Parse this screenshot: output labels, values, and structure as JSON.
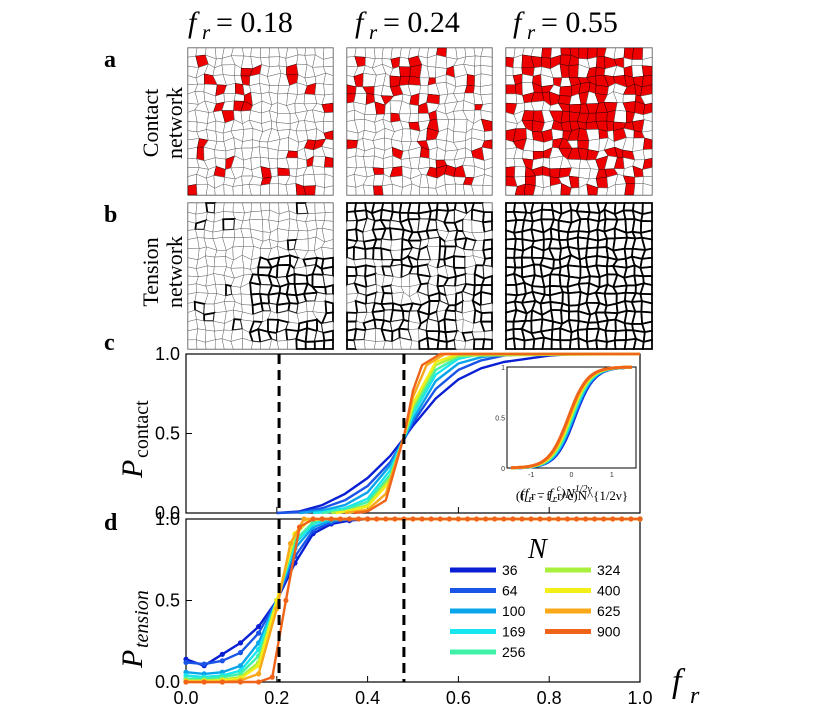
{
  "headers": {
    "col1": {
      "main": "f",
      "sub": "r",
      "value": "= 0.18"
    },
    "col2": {
      "main": "f",
      "sub": "r",
      "value": "= 0.24"
    },
    "col3": {
      "main": "f",
      "sub": "r",
      "value": "= 0.55"
    }
  },
  "rows": {
    "a": {
      "letter": "a",
      "line1": "Contact",
      "line2": "network"
    },
    "b": {
      "letter": "b",
      "line1": "Tension",
      "line2": "network"
    }
  },
  "colors": {
    "rigid": "#ee0000",
    "cell_edge": "#666666",
    "tension_edge": "#000000"
  },
  "chart_data": [
    {
      "id": "c",
      "type": "line",
      "panel_label": "c",
      "ylabel": "P",
      "ylabel_sub": "contact",
      "xlim": [
        0,
        1
      ],
      "ylim": [
        0,
        1
      ],
      "yticks": [
        "0.0",
        "0.5",
        "1.0"
      ],
      "vlines": [
        0.205,
        0.48
      ],
      "series": [
        {
          "name": "36",
          "color": "#0a1fd4",
          "x": [
            0.2,
            0.25,
            0.3,
            0.35,
            0.4,
            0.45,
            0.48,
            0.5,
            0.55,
            0.6,
            0.65,
            0.7,
            0.75,
            0.8,
            0.85,
            0.9,
            1.0
          ],
          "y": [
            0,
            0.01,
            0.05,
            0.12,
            0.22,
            0.36,
            0.47,
            0.55,
            0.72,
            0.84,
            0.91,
            0.95,
            0.97,
            0.99,
            1,
            1,
            1
          ]
        },
        {
          "name": "64",
          "color": "#1a55e8",
          "x": [
            0.2,
            0.25,
            0.3,
            0.35,
            0.4,
            0.45,
            0.48,
            0.5,
            0.55,
            0.6,
            0.65,
            0.7,
            0.75,
            0.8,
            1.0
          ],
          "y": [
            0,
            0.005,
            0.03,
            0.08,
            0.17,
            0.32,
            0.46,
            0.57,
            0.78,
            0.9,
            0.96,
            0.99,
            1,
            1,
            1
          ]
        },
        {
          "name": "100",
          "color": "#0aa4ea",
          "x": [
            0.25,
            0.3,
            0.35,
            0.4,
            0.45,
            0.48,
            0.5,
            0.55,
            0.6,
            0.65,
            0.7,
            1.0
          ],
          "y": [
            0,
            0.015,
            0.05,
            0.13,
            0.3,
            0.47,
            0.59,
            0.83,
            0.94,
            0.98,
            1,
            1
          ]
        },
        {
          "name": "169",
          "color": "#18e6ee",
          "x": [
            0.28,
            0.3,
            0.35,
            0.4,
            0.45,
            0.48,
            0.5,
            0.55,
            0.6,
            0.65,
            1.0
          ],
          "y": [
            0,
            0.005,
            0.03,
            0.09,
            0.27,
            0.47,
            0.62,
            0.87,
            0.97,
            1,
            1
          ]
        },
        {
          "name": "256",
          "color": "#3ef0a8",
          "x": [
            0.3,
            0.35,
            0.4,
            0.45,
            0.48,
            0.5,
            0.55,
            0.6,
            0.65,
            1.0
          ],
          "y": [
            0,
            0.02,
            0.07,
            0.24,
            0.47,
            0.64,
            0.9,
            0.98,
            1,
            1
          ]
        },
        {
          "name": "324",
          "color": "#a8f03c",
          "x": [
            0.32,
            0.35,
            0.4,
            0.45,
            0.48,
            0.5,
            0.55,
            0.6,
            1.0
          ],
          "y": [
            0,
            0.01,
            0.05,
            0.22,
            0.48,
            0.67,
            0.93,
            0.99,
            1
          ]
        },
        {
          "name": "400",
          "color": "#f4ee18",
          "x": [
            0.33,
            0.35,
            0.4,
            0.45,
            0.48,
            0.5,
            0.55,
            0.6,
            1.0
          ],
          "y": [
            0,
            0.008,
            0.04,
            0.2,
            0.48,
            0.69,
            0.95,
            1,
            1
          ]
        },
        {
          "name": "625",
          "color": "#f8a818",
          "x": [
            0.35,
            0.4,
            0.44,
            0.48,
            0.5,
            0.53,
            0.57,
            1.0
          ],
          "y": [
            0,
            0.02,
            0.12,
            0.48,
            0.73,
            0.93,
            1,
            1
          ]
        },
        {
          "name": "900",
          "color": "#f0641a",
          "x": [
            0.37,
            0.4,
            0.44,
            0.48,
            0.5,
            0.52,
            0.56,
            1.0
          ],
          "y": [
            0,
            0.01,
            0.08,
            0.48,
            0.77,
            0.93,
            1,
            1
          ]
        }
      ]
    },
    {
      "id": "c-inset",
      "type": "scatter",
      "xlabel": "(f_r - f_r^c)N^{1/2ν}",
      "xlim": [
        -1.6,
        1.6
      ],
      "ylim": [
        0,
        1
      ],
      "xticks": [
        "-1",
        "0",
        "1"
      ],
      "yticks": [
        "0",
        "0.5",
        "1"
      ],
      "note": "all system sizes collapse onto one sigmoidal curve"
    },
    {
      "id": "d",
      "type": "line",
      "panel_label": "d",
      "ylabel": "P",
      "ylabel_sub": "tension",
      "xlabel": "f",
      "xlabel_sub": "r",
      "xlim": [
        0,
        1
      ],
      "ylim": [
        0,
        1
      ],
      "xticks": [
        "0.0",
        "0.2",
        "0.4",
        "0.6",
        "0.8",
        "1.0"
      ],
      "yticks": [
        "0.0",
        "0.5",
        "1.0"
      ],
      "vlines": [
        0.205,
        0.48
      ],
      "legend_title": "N",
      "series": [
        {
          "name": "36",
          "color": "#0a1fd4",
          "x": [
            0,
            0.04,
            0.08,
            0.12,
            0.16,
            0.2,
            0.24,
            0.28,
            0.32,
            0.36,
            0.4,
            1.0
          ],
          "y": [
            0.14,
            0.1,
            0.17,
            0.24,
            0.34,
            0.5,
            0.73,
            0.91,
            0.97,
            0.99,
            1,
            1
          ]
        },
        {
          "name": "64",
          "color": "#1a55e8",
          "x": [
            0,
            0.04,
            0.08,
            0.12,
            0.16,
            0.2,
            0.24,
            0.28,
            0.32,
            0.36,
            1.0
          ],
          "y": [
            0.12,
            0.11,
            0.13,
            0.18,
            0.3,
            0.5,
            0.77,
            0.93,
            0.98,
            1,
            1
          ]
        },
        {
          "name": "100",
          "color": "#0aa4ea",
          "x": [
            0,
            0.04,
            0.08,
            0.12,
            0.16,
            0.2,
            0.24,
            0.28,
            0.32,
            0.36,
            1.0
          ],
          "y": [
            0.06,
            0.05,
            0.06,
            0.1,
            0.24,
            0.5,
            0.82,
            0.95,
            0.99,
            1,
            1
          ]
        },
        {
          "name": "169",
          "color": "#18e6ee",
          "x": [
            0,
            0.04,
            0.08,
            0.12,
            0.16,
            0.2,
            0.24,
            0.28,
            0.32,
            1.0
          ],
          "y": [
            0.04,
            0.03,
            0.04,
            0.07,
            0.2,
            0.5,
            0.85,
            0.97,
            1,
            1
          ]
        },
        {
          "name": "256",
          "color": "#3ef0a8",
          "x": [
            0,
            0.04,
            0.08,
            0.12,
            0.16,
            0.2,
            0.24,
            0.28,
            0.3,
            1.0
          ],
          "y": [
            0.02,
            0.02,
            0.03,
            0.05,
            0.16,
            0.5,
            0.87,
            0.98,
            1,
            1
          ]
        },
        {
          "name": "324",
          "color": "#a8f03c",
          "x": [
            0,
            0.04,
            0.08,
            0.12,
            0.16,
            0.2,
            0.24,
            0.27,
            0.3,
            1.0
          ],
          "y": [
            0.01,
            0.01,
            0.015,
            0.03,
            0.12,
            0.5,
            0.9,
            0.99,
            1,
            1
          ]
        },
        {
          "name": "400",
          "color": "#f4ee18",
          "x": [
            0,
            0.04,
            0.08,
            0.12,
            0.16,
            0.2,
            0.24,
            0.27,
            0.3,
            1.0
          ],
          "y": [
            0.005,
            0.005,
            0.01,
            0.02,
            0.1,
            0.5,
            0.91,
            0.99,
            1,
            1
          ]
        },
        {
          "name": "625",
          "color": "#f8a818",
          "x": [
            0,
            0.04,
            0.08,
            0.12,
            0.16,
            0.2,
            0.23,
            0.26,
            0.3,
            1.0
          ],
          "y": [
            0,
            0,
            0,
            0.01,
            0.05,
            0.45,
            0.85,
            1,
            1,
            1
          ]
        },
        {
          "name": "900",
          "color": "#f0641a",
          "x": [
            0,
            0.04,
            0.08,
            0.12,
            0.16,
            0.19,
            0.22,
            0.25,
            0.28,
            0.3,
            0.32,
            0.34,
            0.36,
            0.38,
            0.4,
            0.42,
            0.44,
            0.46,
            0.48,
            0.5,
            0.52,
            0.54,
            0.56,
            0.58,
            0.6,
            0.62,
            0.64,
            0.66,
            0.68,
            0.7,
            0.72,
            0.74,
            0.76,
            0.78,
            0.8,
            0.82,
            0.84,
            0.86,
            0.88,
            0.9,
            0.92,
            0.94,
            0.96,
            0.98,
            1.0
          ],
          "y": [
            0,
            0,
            0,
            0,
            0,
            0.03,
            0.5,
            0.95,
            1,
            1,
            1,
            1,
            1,
            1,
            1,
            1,
            1,
            1,
            1,
            1,
            1,
            1,
            1,
            1,
            1,
            1,
            1,
            1,
            1,
            1,
            1,
            1,
            1,
            1,
            1,
            1,
            1,
            1,
            1,
            1,
            1,
            1,
            1,
            1,
            1
          ]
        }
      ]
    }
  ]
}
